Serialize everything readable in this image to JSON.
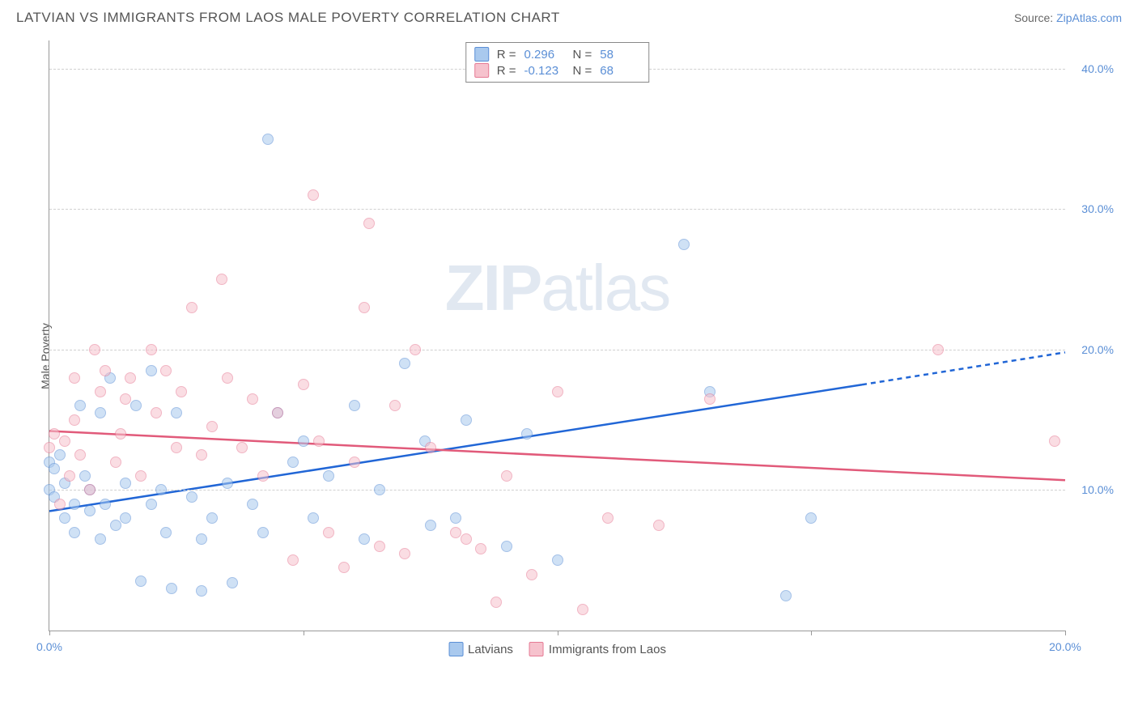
{
  "header": {
    "title": "LATVIAN VS IMMIGRANTS FROM LAOS MALE POVERTY CORRELATION CHART",
    "source_prefix": "Source: ",
    "source_name": "ZipAtlas.com"
  },
  "watermark": {
    "zip": "ZIP",
    "atlas": "atlas"
  },
  "chart": {
    "type": "scatter",
    "y_axis_label": "Male Poverty",
    "xlim": [
      0,
      20
    ],
    "ylim": [
      0,
      42
    ],
    "x_ticks": [
      0,
      5,
      10,
      15,
      20
    ],
    "x_tick_labels": [
      "0.0%",
      "",
      "",
      "",
      "20.0%"
    ],
    "y_gridlines": [
      10,
      20,
      30,
      40
    ],
    "y_tick_labels": [
      "10.0%",
      "20.0%",
      "30.0%",
      "40.0%"
    ],
    "grid_color": "#d0d0d0",
    "background_color": "#ffffff",
    "axis_color": "#999999",
    "tick_label_color": "#5b8fd6",
    "marker_radius": 7,
    "marker_opacity": 0.55,
    "series": [
      {
        "name": "Latvians",
        "fill_color": "#a9c9ee",
        "stroke_color": "#5b8fd6",
        "R": "0.296",
        "N": "58",
        "trend": {
          "x1": 0,
          "y1": 8.5,
          "x2": 16,
          "y2": 17.5,
          "extend_x2": 20,
          "extend_y2": 19.8,
          "color": "#2166d6",
          "width": 2.5
        },
        "points": [
          [
            0,
            12
          ],
          [
            0,
            10
          ],
          [
            0.1,
            11.5
          ],
          [
            0.1,
            9.5
          ],
          [
            0.2,
            12.5
          ],
          [
            0.3,
            8
          ],
          [
            0.3,
            10.5
          ],
          [
            0.5,
            9
          ],
          [
            0.5,
            7
          ],
          [
            0.6,
            16
          ],
          [
            0.7,
            11
          ],
          [
            0.8,
            8.5
          ],
          [
            0.8,
            10
          ],
          [
            1,
            15.5
          ],
          [
            1,
            6.5
          ],
          [
            1.1,
            9
          ],
          [
            1.2,
            18
          ],
          [
            1.3,
            7.5
          ],
          [
            1.5,
            10.5
          ],
          [
            1.5,
            8
          ],
          [
            1.7,
            16
          ],
          [
            1.8,
            3.5
          ],
          [
            2,
            9
          ],
          [
            2,
            18.5
          ],
          [
            2.2,
            10
          ],
          [
            2.3,
            7
          ],
          [
            2.4,
            3
          ],
          [
            2.5,
            15.5
          ],
          [
            2.8,
            9.5
          ],
          [
            3,
            6.5
          ],
          [
            3,
            2.8
          ],
          [
            3.2,
            8
          ],
          [
            3.5,
            10.5
          ],
          [
            3.6,
            3.4
          ],
          [
            4,
            9
          ],
          [
            4.2,
            7
          ],
          [
            4.3,
            35
          ],
          [
            4.5,
            15.5
          ],
          [
            4.8,
            12
          ],
          [
            5,
            13.5
          ],
          [
            5.2,
            8
          ],
          [
            5.5,
            11
          ],
          [
            6,
            16
          ],
          [
            6.2,
            6.5
          ],
          [
            6.5,
            10
          ],
          [
            7,
            19
          ],
          [
            7.4,
            13.5
          ],
          [
            7.5,
            7.5
          ],
          [
            8,
            8
          ],
          [
            8.2,
            15
          ],
          [
            9,
            6
          ],
          [
            9.4,
            14
          ],
          [
            10,
            5
          ],
          [
            12.5,
            27.5
          ],
          [
            13,
            17
          ],
          [
            14.5,
            2.5
          ],
          [
            15,
            8
          ]
        ]
      },
      {
        "name": "Immigrants from Laos",
        "fill_color": "#f6c2cd",
        "stroke_color": "#e67a94",
        "R": "-0.123",
        "N": "68",
        "trend": {
          "x1": 0,
          "y1": 14.2,
          "x2": 20,
          "y2": 10.7,
          "color": "#e15a7a",
          "width": 2.5
        },
        "points": [
          [
            0,
            13
          ],
          [
            0.1,
            14
          ],
          [
            0.2,
            9
          ],
          [
            0.3,
            13.5
          ],
          [
            0.4,
            11
          ],
          [
            0.5,
            18
          ],
          [
            0.5,
            15
          ],
          [
            0.6,
            12.5
          ],
          [
            0.8,
            10
          ],
          [
            0.9,
            20
          ],
          [
            1,
            17
          ],
          [
            1.1,
            18.5
          ],
          [
            1.3,
            12
          ],
          [
            1.4,
            14
          ],
          [
            1.5,
            16.5
          ],
          [
            1.6,
            18
          ],
          [
            1.8,
            11
          ],
          [
            2,
            20
          ],
          [
            2.1,
            15.5
          ],
          [
            2.3,
            18.5
          ],
          [
            2.5,
            13
          ],
          [
            2.6,
            17
          ],
          [
            2.8,
            23
          ],
          [
            3,
            12.5
          ],
          [
            3.2,
            14.5
          ],
          [
            3.4,
            25
          ],
          [
            3.5,
            18
          ],
          [
            3.8,
            13
          ],
          [
            4,
            16.5
          ],
          [
            4.2,
            11
          ],
          [
            4.5,
            15.5
          ],
          [
            4.8,
            5
          ],
          [
            5,
            17.5
          ],
          [
            5.2,
            31
          ],
          [
            5.3,
            13.5
          ],
          [
            5.5,
            7
          ],
          [
            5.8,
            4.5
          ],
          [
            6,
            12
          ],
          [
            6.2,
            23
          ],
          [
            6.3,
            29
          ],
          [
            6.5,
            6
          ],
          [
            6.8,
            16
          ],
          [
            7,
            5.5
          ],
          [
            7.2,
            20
          ],
          [
            7.5,
            13
          ],
          [
            8,
            7
          ],
          [
            8.2,
            6.5
          ],
          [
            8.5,
            5.8
          ],
          [
            8.8,
            2
          ],
          [
            9,
            11
          ],
          [
            9.5,
            4
          ],
          [
            10,
            17
          ],
          [
            10.5,
            1.5
          ],
          [
            11,
            8
          ],
          [
            12,
            7.5
          ],
          [
            13,
            16.5
          ],
          [
            17.5,
            20
          ],
          [
            19.8,
            13.5
          ]
        ]
      }
    ],
    "legend_top": {
      "R_label": "R = ",
      "N_label": "N = "
    },
    "legend_bottom": {
      "items": [
        "Latvians",
        "Immigrants from Laos"
      ]
    }
  }
}
